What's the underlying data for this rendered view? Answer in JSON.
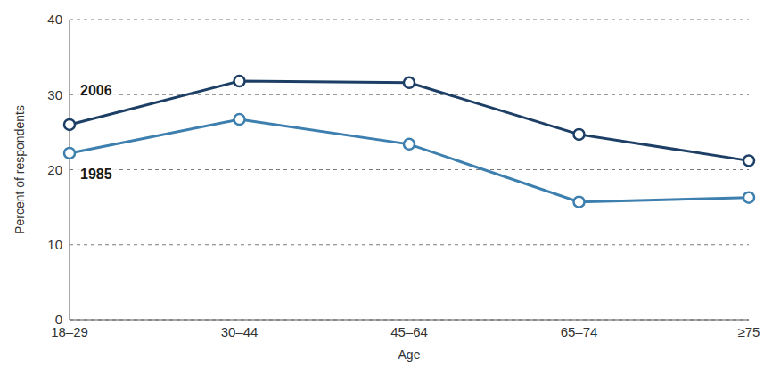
{
  "chart_data": {
    "type": "line",
    "categories": [
      "18–29",
      "30–44",
      "45–64",
      "65–74",
      "≥75"
    ],
    "x_label": "Age",
    "y_label": "Percent of respondents",
    "ylim": [
      0,
      40
    ],
    "yticks": [
      0,
      10,
      20,
      30,
      40
    ],
    "grid": true,
    "series": [
      {
        "name": "2006",
        "color": "#1d3f66",
        "marker": "circle",
        "values": [
          26,
          31.8,
          31.6,
          24.7,
          21.2
        ]
      },
      {
        "name": "1985",
        "color": "#3d7fae",
        "marker": "circle",
        "values": [
          22.2,
          26.7,
          23.4,
          15.7,
          16.3
        ]
      }
    ]
  }
}
